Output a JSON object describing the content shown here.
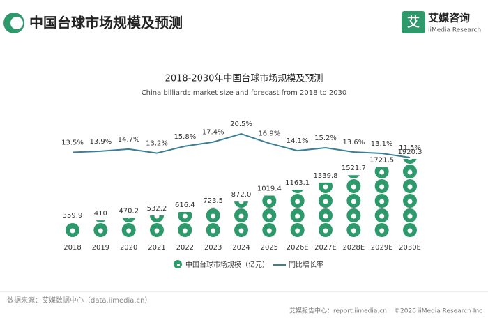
{
  "header": {
    "title": "中国台球市场规模及预测",
    "logo": "艾媒咨询",
    "logo_en": "iiMedia Research"
  },
  "chart_data": {
    "type": "pictorial-bar-line",
    "title": "2018-2030年中国台球市场规模及预测",
    "subtitle": "China billiards market size and forecast from 2018 to 2030",
    "categories": [
      "2018",
      "2019",
      "2020",
      "2021",
      "2022",
      "2023",
      "2024",
      "2025",
      "2026E",
      "2027E",
      "2028E",
      "2029E",
      "2030E"
    ],
    "series": [
      {
        "name": "中国台球市场规模（亿元）",
        "color": "#2e9a6c",
        "values": [
          359.9,
          410,
          470.2,
          532.2,
          616.4,
          723.5,
          872.0,
          1019.4,
          1163.1,
          1339.8,
          1521.7,
          1721.5,
          1920.3
        ],
        "value_labels": [
          "359.9",
          "410",
          "470.2",
          "532.2",
          "616.4",
          "723.5",
          "872.0",
          "1019.4",
          "1163.1",
          "1339.8",
          "1521.7",
          "1721.5",
          "1920.3"
        ]
      },
      {
        "name": "同比增长率",
        "color": "#3b7f96",
        "values": [
          13.5,
          13.9,
          14.7,
          13.2,
          15.8,
          17.4,
          20.5,
          16.9,
          14.1,
          15.2,
          13.6,
          13.1,
          11.5
        ],
        "value_labels": [
          "13.5%",
          "13.9%",
          "14.7%",
          "13.2%",
          "15.8%",
          "17.4%",
          "20.5%",
          "16.9%",
          "14.1%",
          "15.2%",
          "13.6%",
          "13.1%",
          "11.5%"
        ]
      }
    ]
  },
  "footer": {
    "source": "数据来源：艾媒数据中心（data.iimedia.cn）",
    "report": "艾媒报告中心：report.iimedia.cn",
    "copyright": "©2026  iiMedia Research  Inc"
  }
}
